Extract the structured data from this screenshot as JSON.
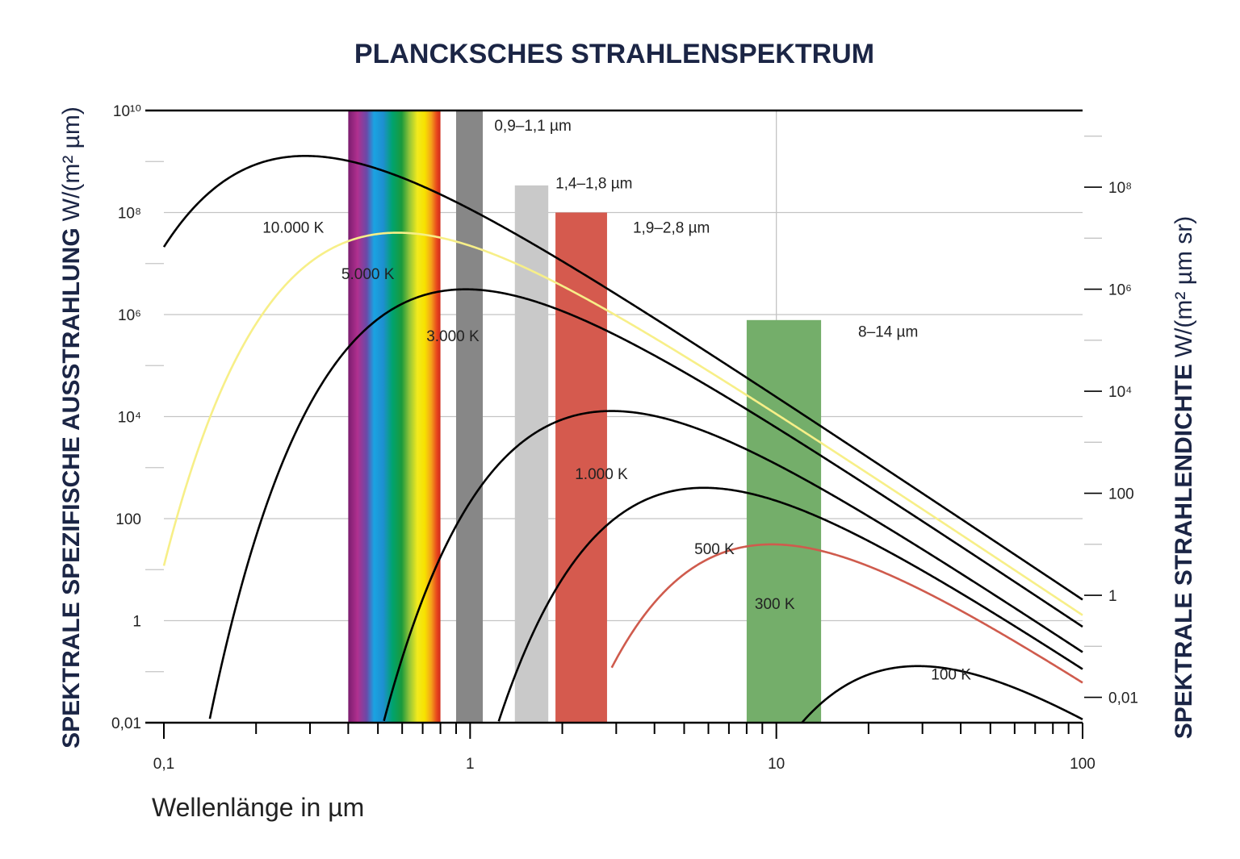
{
  "chart_data": {
    "type": "line",
    "title": "PLANCKSCHES STRAHLENSPEKTRUM",
    "xlabel": "Wellenlänge in µm",
    "ylabel_left": {
      "bold": "SPEKTRALE SPEZIFISCHE AUSSTRAHLUNG",
      "unit": "W/(m² µm)"
    },
    "ylabel_right": {
      "bold": "SPEKTRALE STRAHLENDICHTE",
      "unit": "W/(m² µm sr)"
    },
    "x_scale": "log",
    "y_scale": "log",
    "xlim": [
      0.1,
      100
    ],
    "ylim": [
      0.01,
      10000000000
    ],
    "grid": true,
    "x_ticks": [
      {
        "value": 0.1,
        "label": "0,1"
      },
      {
        "value": 1,
        "label": "1"
      },
      {
        "value": 10,
        "label": "10"
      },
      {
        "value": 100,
        "label": "100"
      }
    ],
    "y_ticks_left": [
      {
        "value": 0.01,
        "label": "0,01"
      },
      {
        "value": 1,
        "label": "1"
      },
      {
        "value": 100,
        "label": "100"
      },
      {
        "value": 10000,
        "label": "10⁴"
      },
      {
        "value": 1000000,
        "label": "10⁶"
      },
      {
        "value": 100000000,
        "label": "10⁸"
      },
      {
        "value": 10000000000,
        "label": "10¹⁰"
      }
    ],
    "y_ticks_right": [
      {
        "value": 0.0314,
        "label": "0,01"
      },
      {
        "value": 3.14,
        "label": "1"
      },
      {
        "value": 314,
        "label": "100"
      },
      {
        "value": 31400,
        "label": "10⁴"
      },
      {
        "value": 3140000,
        "label": "10⁶"
      },
      {
        "value": 314000000,
        "label": "10⁸"
      }
    ],
    "series": [
      {
        "name": "10.000 K",
        "temperature": 10000,
        "color": "#000000",
        "x_min": 0.1
      },
      {
        "name": "5.000 K",
        "temperature": 5000,
        "color": "#f7ef88",
        "x_min": 0.1
      },
      {
        "name": "3.000 K",
        "temperature": 3000,
        "color": "#000000",
        "x_min": 0.1
      },
      {
        "name": "1.000 K",
        "temperature": 1000,
        "color": "#000000",
        "x_min": 0.3
      },
      {
        "name": "500 K",
        "temperature": 500,
        "color": "#000000",
        "x_min": 0.5
      },
      {
        "name": "300 K",
        "temperature": 300,
        "color": "#cf5b4d",
        "x_min": 2.9
      },
      {
        "name": "100 K",
        "temperature": 100,
        "color": "#000000",
        "x_min": 5
      }
    ],
    "curve_labels": [
      {
        "text": "10.000 K",
        "x": 0.21,
        "y": 40000000
      },
      {
        "text": "5.000 K",
        "x": 0.38,
        "y": 5000000
      },
      {
        "text": "3.000 K",
        "x": 0.72,
        "y": 300000
      },
      {
        "text": "1.000 K",
        "x": 2.2,
        "y": 600
      },
      {
        "text": "500 K",
        "x": 5.4,
        "y": 20
      },
      {
        "text": "300 K",
        "x": 8.5,
        "y": 1.7
      },
      {
        "text": "100 K",
        "x": 32,
        "y": 0.07
      }
    ],
    "spectrum": {
      "x_start": 0.4,
      "x_end": 0.8,
      "y_top": 10000000000
    },
    "bands": [
      {
        "label": "0,9–1,1 µm",
        "x_start": 0.9,
        "x_end": 1.1,
        "y_top": 10000000000,
        "color": "#878787"
      },
      {
        "label": "1,4–1,8 µm",
        "x_start": 1.4,
        "x_end": 1.8,
        "y_top": 340000000,
        "color": "#c9c9c9"
      },
      {
        "label": "1,9–2,8 µm",
        "x_start": 1.9,
        "x_end": 2.8,
        "y_top": 100000000,
        "color": "#d55a4e"
      },
      {
        "label": "8–14 µm",
        "x_start": 8,
        "x_end": 14,
        "y_top": 780000,
        "color": "#74ae6a"
      }
    ],
    "band_labels": [
      {
        "text": "0,9–1,1 µm",
        "x": 1.2,
        "y": 4000000000
      },
      {
        "text": "1,4–1,8 µm",
        "x": 1.9,
        "y": 300000000
      },
      {
        "text": "1,9–2,8 µm",
        "x": 3.4,
        "y": 40000000
      },
      {
        "text": "8–14 µm",
        "x": 18.5,
        "y": 370000
      }
    ]
  }
}
